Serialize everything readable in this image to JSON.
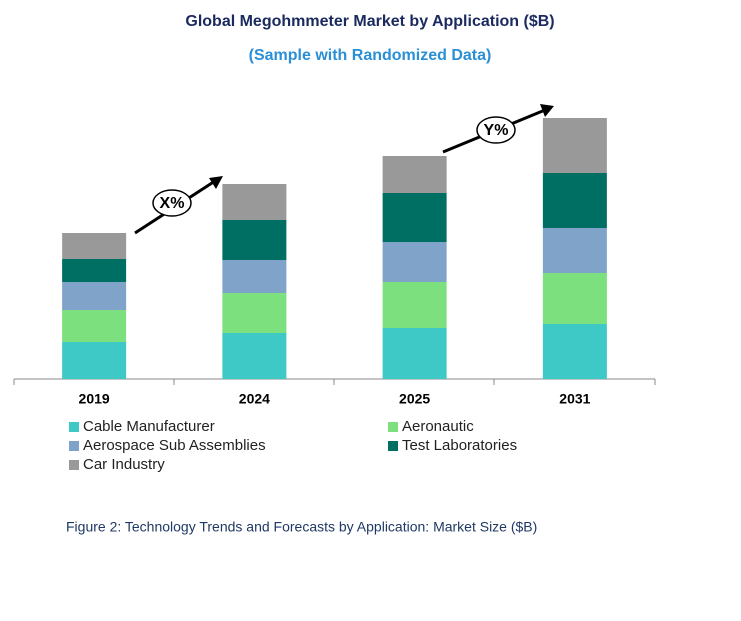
{
  "chart_data": {
    "type": "stacked-bar",
    "title": "Global Megohmmeter Market by Application ($B)",
    "subtitle": "(Sample with Randomized Data)",
    "caption": "Figure 2: Technology  Trends and Forecasts by Application: Market Size ($B)",
    "annotations": [
      "X%",
      "Y%"
    ],
    "categories": [
      "2019",
      "2024",
      "2025",
      "2031"
    ],
    "series": [
      {
        "name": "Cable Manufacturer",
        "color": "#3ec9c6",
        "values": [
          37,
          46,
          51,
          55
        ]
      },
      {
        "name": "Aeronautic",
        "color": "#7be07d",
        "values": [
          32,
          40,
          46,
          51
        ]
      },
      {
        "name": "Aerospace Sub Assemblies",
        "color": "#7fa3c9",
        "values": [
          28,
          33,
          40,
          45
        ]
      },
      {
        "name": "Test Laboratories",
        "color": "#006f63",
        "values": [
          23,
          40,
          49,
          55
        ]
      },
      {
        "name": "Car Industry",
        "color": "#999999",
        "values": [
          26,
          36,
          37,
          55
        ]
      }
    ],
    "ylim": [
      0,
      280
    ]
  }
}
